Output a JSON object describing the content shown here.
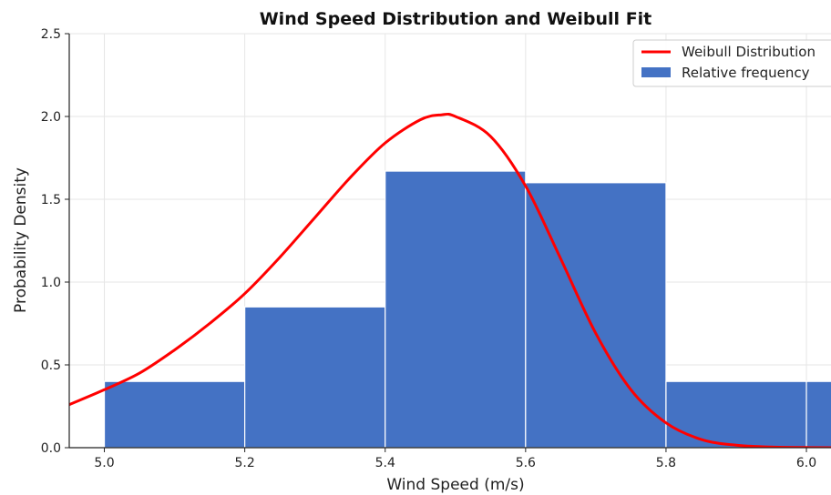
{
  "chart_data": {
    "type": "bar",
    "title": "Wind Speed Distribution and Weibull Fit",
    "xlabel": "Wind Speed (m/s)",
    "ylabel": "Probability Density",
    "xlim": [
      4.95,
      6.035
    ],
    "ylim": [
      0,
      2.5
    ],
    "grid": true,
    "legend_position": "top-right",
    "x_ticks": [
      "5.0",
      "5.2",
      "5.4",
      "5.6",
      "5.8",
      "6.0"
    ],
    "y_ticks": [
      "0.0",
      "0.5",
      "1.0",
      "1.5",
      "2.0",
      "2.5"
    ],
    "histogram": {
      "name": "Relative frequency",
      "color": "#4472c4",
      "bins": [
        {
          "x0": 5.0,
          "x1": 5.2,
          "value": 0.4
        },
        {
          "x0": 5.2,
          "x1": 5.4,
          "value": 0.85
        },
        {
          "x0": 5.4,
          "x1": 5.6,
          "value": 1.67
        },
        {
          "x0": 5.6,
          "x1": 5.8,
          "value": 1.6
        },
        {
          "x0": 5.8,
          "x1": 6.0,
          "value": 0.4
        },
        {
          "x0": 6.0,
          "x1": 6.2,
          "value": 0.4
        }
      ]
    },
    "curve": {
      "name": "Weibull Distribution",
      "color": "#ff0000",
      "x": [
        4.95,
        5.0,
        5.05,
        5.1,
        5.15,
        5.2,
        5.25,
        5.3,
        5.35,
        5.4,
        5.45,
        5.48,
        5.5,
        5.55,
        5.6,
        5.65,
        5.7,
        5.75,
        5.8,
        5.85,
        5.9,
        5.95,
        6.0,
        6.035
      ],
      "y": [
        0.26,
        0.35,
        0.45,
        0.59,
        0.75,
        0.93,
        1.15,
        1.39,
        1.63,
        1.84,
        1.98,
        2.01,
        2.0,
        1.88,
        1.58,
        1.14,
        0.69,
        0.35,
        0.15,
        0.05,
        0.015,
        0.004,
        0.001,
        0.0
      ]
    }
  }
}
